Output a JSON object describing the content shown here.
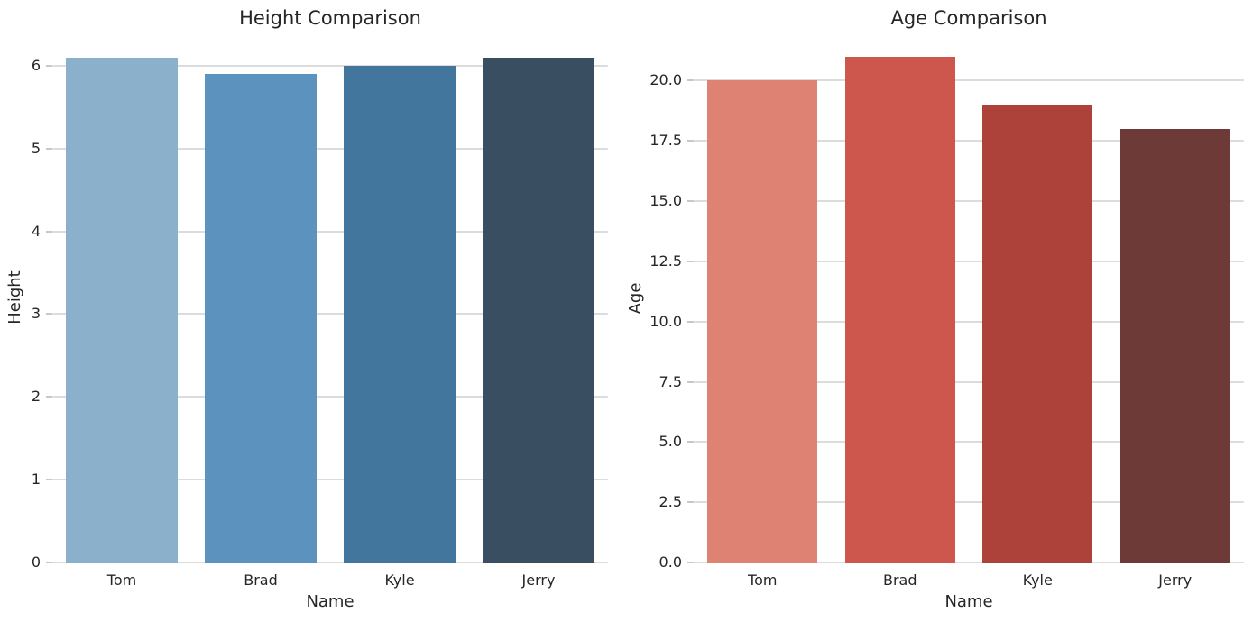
{
  "figure": {
    "background": "#ffffff",
    "text_color": "#262626",
    "grid_color": "#dcdcdc",
    "tick_color": "#c8c8c8"
  },
  "chart_data": [
    {
      "type": "bar",
      "title": "Height Comparison",
      "xlabel": "Name",
      "ylabel": "Height",
      "categories": [
        "Tom",
        "Brad",
        "Kyle",
        "Jerry"
      ],
      "values": [
        6.1,
        5.9,
        6.0,
        6.1
      ],
      "bar_colors": [
        "#8bb0cb",
        "#5c92be",
        "#43769c",
        "#3a4e62"
      ],
      "ylim": [
        0,
        6.4
      ],
      "yticks": [
        {
          "v": 0,
          "label": "0"
        },
        {
          "v": 1,
          "label": "1"
        },
        {
          "v": 2,
          "label": "2"
        },
        {
          "v": 3,
          "label": "3"
        },
        {
          "v": 4,
          "label": "4"
        },
        {
          "v": 5,
          "label": "5"
        },
        {
          "v": 6,
          "label": "6"
        }
      ],
      "grid": "horizontal",
      "legend": "none"
    },
    {
      "type": "bar",
      "title": "Age Comparison",
      "xlabel": "Name",
      "ylabel": "Age",
      "categories": [
        "Tom",
        "Brad",
        "Kyle",
        "Jerry"
      ],
      "values": [
        20,
        21,
        19,
        18
      ],
      "bar_colors": [
        "#de8374",
        "#cd574d",
        "#ac423a",
        "#6e3a37"
      ],
      "ylim": [
        0,
        22
      ],
      "yticks": [
        {
          "v": 0,
          "label": "0.0"
        },
        {
          "v": 2.5,
          "label": "2.5"
        },
        {
          "v": 5,
          "label": "5.0"
        },
        {
          "v": 7.5,
          "label": "7.5"
        },
        {
          "v": 10,
          "label": "10.0"
        },
        {
          "v": 12.5,
          "label": "12.5"
        },
        {
          "v": 15,
          "label": "15.0"
        },
        {
          "v": 17.5,
          "label": "17.5"
        },
        {
          "v": 20,
          "label": "20.0"
        }
      ],
      "grid": "horizontal",
      "legend": "none"
    }
  ]
}
